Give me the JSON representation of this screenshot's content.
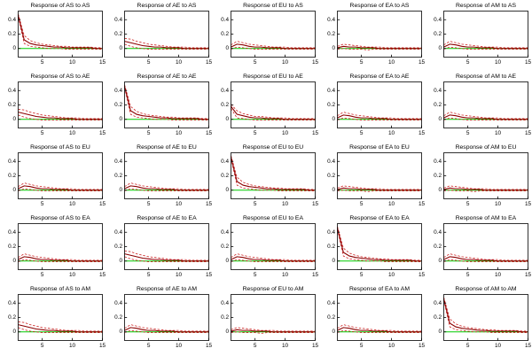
{
  "figure": {
    "background": "#ffffff"
  },
  "chart_data": {
    "type": "line",
    "description": "5x5 grid of impulse response plots with solid point-estimate line, dashed confidence bands and green zero line",
    "layout": {
      "rows": 5,
      "cols": 5,
      "grid": false,
      "legend": "none"
    },
    "x": [
      1,
      2,
      3,
      4,
      5,
      6,
      7,
      8,
      9,
      10,
      11,
      12,
      13,
      14,
      15
    ],
    "xlim": [
      1,
      15
    ],
    "ylim": [
      -0.12,
      0.52
    ],
    "xticks": [
      5,
      10,
      15
    ],
    "yticks": [
      0,
      0.2,
      0.4
    ],
    "ytick_labels": [
      "0",
      "0.2",
      "0.4"
    ],
    "colors": {
      "zero_line": "#00cc00",
      "center_line": "#8b0000",
      "band_line": "#cc2222",
      "axis": "#000000"
    },
    "shapes": {
      "spike": {
        "center": [
          0.46,
          0.12,
          0.07,
          0.05,
          0.04,
          0.03,
          0.02,
          0.02,
          0.01,
          0.01,
          0.01,
          0.01,
          0.01,
          0.0,
          0.0
        ],
        "upper": [
          0.48,
          0.18,
          0.11,
          0.08,
          0.06,
          0.05,
          0.04,
          0.03,
          0.03,
          0.02,
          0.02,
          0.02,
          0.02,
          0.01,
          0.01
        ],
        "lower": [
          0.44,
          0.07,
          0.03,
          0.02,
          0.01,
          0.0,
          0.0,
          0.0,
          -0.01,
          -0.01,
          -0.01,
          -0.01,
          -0.01,
          -0.01,
          -0.01
        ]
      },
      "med": {
        "center": [
          0.1,
          0.08,
          0.06,
          0.04,
          0.03,
          0.02,
          0.02,
          0.01,
          0.01,
          0.01,
          0.0,
          0.0,
          0.0,
          0.0,
          0.0
        ],
        "upper": [
          0.14,
          0.13,
          0.1,
          0.08,
          0.06,
          0.05,
          0.04,
          0.03,
          0.02,
          0.02,
          0.02,
          0.01,
          0.01,
          0.01,
          0.01
        ],
        "lower": [
          0.06,
          0.03,
          0.01,
          0.0,
          -0.01,
          -0.01,
          -0.01,
          -0.01,
          -0.01,
          -0.01,
          -0.01,
          -0.01,
          -0.01,
          -0.01,
          -0.01
        ]
      },
      "start": {
        "center": [
          0.18,
          0.07,
          0.05,
          0.03,
          0.02,
          0.02,
          0.01,
          0.01,
          0.01,
          0.0,
          0.0,
          0.0,
          0.0,
          0.0,
          0.0
        ],
        "upper": [
          0.21,
          0.12,
          0.08,
          0.06,
          0.04,
          0.04,
          0.03,
          0.02,
          0.02,
          0.02,
          0.01,
          0.01,
          0.01,
          0.01,
          0.01
        ],
        "lower": [
          0.15,
          0.02,
          0.01,
          0.0,
          -0.01,
          -0.01,
          -0.01,
          -0.01,
          -0.01,
          -0.01,
          -0.01,
          -0.01,
          -0.01,
          -0.01,
          -0.01
        ]
      },
      "hump": {
        "center": [
          0.02,
          0.06,
          0.05,
          0.03,
          0.02,
          0.02,
          0.01,
          0.01,
          0.01,
          0.0,
          0.0,
          0.0,
          0.0,
          0.0,
          0.0
        ],
        "upper": [
          0.05,
          0.1,
          0.08,
          0.06,
          0.05,
          0.04,
          0.03,
          0.02,
          0.02,
          0.02,
          0.01,
          0.01,
          0.01,
          0.01,
          0.01
        ],
        "lower": [
          -0.01,
          0.02,
          0.01,
          0.0,
          -0.01,
          -0.01,
          -0.01,
          -0.01,
          -0.01,
          -0.01,
          -0.01,
          -0.01,
          -0.01,
          -0.01,
          -0.01
        ]
      },
      "flat": {
        "center": [
          0.01,
          0.03,
          0.02,
          0.02,
          0.01,
          0.01,
          0.01,
          0.0,
          0.0,
          0.0,
          0.0,
          0.0,
          0.0,
          0.0,
          0.0
        ],
        "upper": [
          0.03,
          0.06,
          0.05,
          0.04,
          0.03,
          0.02,
          0.02,
          0.02,
          0.01,
          0.01,
          0.01,
          0.01,
          0.01,
          0.01,
          0.01
        ],
        "lower": [
          -0.01,
          0.0,
          -0.01,
          -0.01,
          -0.01,
          -0.02,
          -0.01,
          -0.01,
          -0.01,
          -0.01,
          -0.01,
          -0.01,
          -0.01,
          -0.01,
          -0.01
        ]
      }
    },
    "subplots": [
      {
        "title": "Response of AS to AS",
        "shape": "spike"
      },
      {
        "title": "Response of AE to AS",
        "shape": "med"
      },
      {
        "title": "Response of EU to AS",
        "shape": "hump"
      },
      {
        "title": "Response of EA to AS",
        "shape": "flat"
      },
      {
        "title": "Response of AM to AS",
        "shape": "hump"
      },
      {
        "title": "Response of AS to AE",
        "shape": "med"
      },
      {
        "title": "Response of AE to AE",
        "shape": "spike"
      },
      {
        "title": "Response of EU to AE",
        "shape": "start"
      },
      {
        "title": "Response of EA to AE",
        "shape": "hump"
      },
      {
        "title": "Response of AM to AE",
        "shape": "hump"
      },
      {
        "title": "Response of AS to EU",
        "shape": "hump"
      },
      {
        "title": "Response of AE to EU",
        "shape": "hump"
      },
      {
        "title": "Response of EU to EU",
        "shape": "spike"
      },
      {
        "title": "Response of EA to EU",
        "shape": "flat"
      },
      {
        "title": "Response of AM to EU",
        "shape": "flat"
      },
      {
        "title": "Response of AS to EA",
        "shape": "hump"
      },
      {
        "title": "Response of AE to EA",
        "shape": "med"
      },
      {
        "title": "Response of EU to EA",
        "shape": "hump"
      },
      {
        "title": "Response of EA to EA",
        "shape": "spike"
      },
      {
        "title": "Response of AM to EA",
        "shape": "hump"
      },
      {
        "title": "Response of AS to AM",
        "shape": "med"
      },
      {
        "title": "Response of AE to AM",
        "shape": "hump"
      },
      {
        "title": "Response of EU to AM",
        "shape": "flat"
      },
      {
        "title": "Response of EA to AM",
        "shape": "hump"
      },
      {
        "title": "Response of AM to AM",
        "shape": "spike"
      }
    ]
  }
}
